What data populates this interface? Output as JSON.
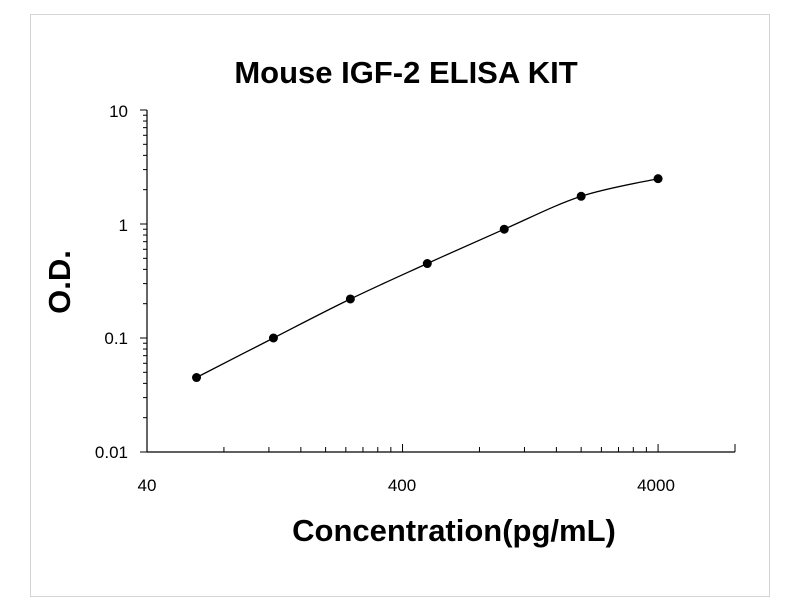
{
  "chart_data": {
    "type": "scatter",
    "title": "Mouse IGF-2 ELISA KIT",
    "xlabel": "Concentration(pg/mL)",
    "ylabel": "O.D.",
    "x_scale": "log",
    "y_scale": "log",
    "xlim": [
      40,
      8000
    ],
    "ylim": [
      0.01,
      10
    ],
    "x_tick_labels": [
      "40",
      "400",
      "4000"
    ],
    "y_tick_labels": [
      "10",
      "1",
      "0.1",
      "0.01"
    ],
    "grid": false,
    "legend": "none",
    "fit_curve": true,
    "marker_color": "#000000",
    "line_color": "#000000",
    "series": [
      {
        "x": [
          62.5,
          125,
          250,
          500,
          1000,
          2000,
          4000
        ],
        "y": [
          0.045,
          0.1,
          0.22,
          0.45,
          0.9,
          1.75,
          2.5
        ]
      }
    ]
  }
}
